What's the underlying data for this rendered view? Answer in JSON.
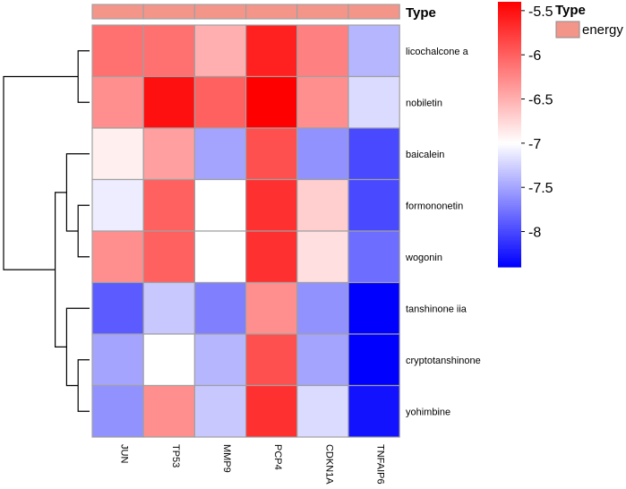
{
  "chart_data": {
    "type": "heatmap",
    "title": "",
    "columns": [
      "JUN",
      "TP53",
      "MMP9",
      "PCP4",
      "CDKN1A",
      "TNFAIP6"
    ],
    "rows": [
      "licochalcone a",
      "nobiletin",
      "baicalein",
      "formononetin",
      "wogonin",
      "tanshinone iia",
      "cryptotanshinone",
      "yohimbine"
    ],
    "values": [
      [
        -6.1,
        -6.1,
        -6.5,
        -5.6,
        -6.2,
        -7.4
      ],
      [
        -6.3,
        -5.5,
        -6.0,
        -5.4,
        -6.3,
        -7.2
      ],
      [
        -6.9,
        -6.4,
        -7.5,
        -5.9,
        -7.6,
        -8.0
      ],
      [
        -7.1,
        -6.0,
        -7.0,
        -5.7,
        -6.7,
        -8.0
      ],
      [
        -6.3,
        -6.0,
        -7.0,
        -5.7,
        -6.8,
        -7.8
      ],
      [
        -7.9,
        -7.3,
        -7.7,
        -6.3,
        -7.6,
        -8.4
      ],
      [
        -7.5,
        -7.0,
        -7.4,
        -5.9,
        -7.5,
        -8.4
      ],
      [
        -7.6,
        -6.3,
        -7.3,
        -5.7,
        -7.2,
        -8.3
      ]
    ],
    "annotation": {
      "title": "Type",
      "values": [
        "energy",
        "energy",
        "energy",
        "energy",
        "energy",
        "energy"
      ],
      "legend": [
        {
          "label": "energy",
          "color": "#f4958a"
        }
      ]
    },
    "colorbar": {
      "min": -8.4,
      "max": -5.4,
      "mid": -7.0,
      "ticks": [
        -5.5,
        -6,
        -6.5,
        -7,
        -7.5,
        -8
      ],
      "tick_labels": [
        "-5.5",
        "-6",
        "-6.5",
        "-7",
        "-7.5",
        "-8"
      ],
      "low_color": "#0000ff",
      "mid_color": "#ffffff",
      "high_color": "#ff0000"
    },
    "row_dendrogram": {
      "merges": [
        [
          0,
          1
        ],
        [
          3,
          4
        ],
        [
          2,
          9
        ],
        [
          6,
          7
        ],
        [
          5,
          11
        ],
        [
          10,
          12
        ],
        [
          8,
          13
        ]
      ]
    }
  }
}
